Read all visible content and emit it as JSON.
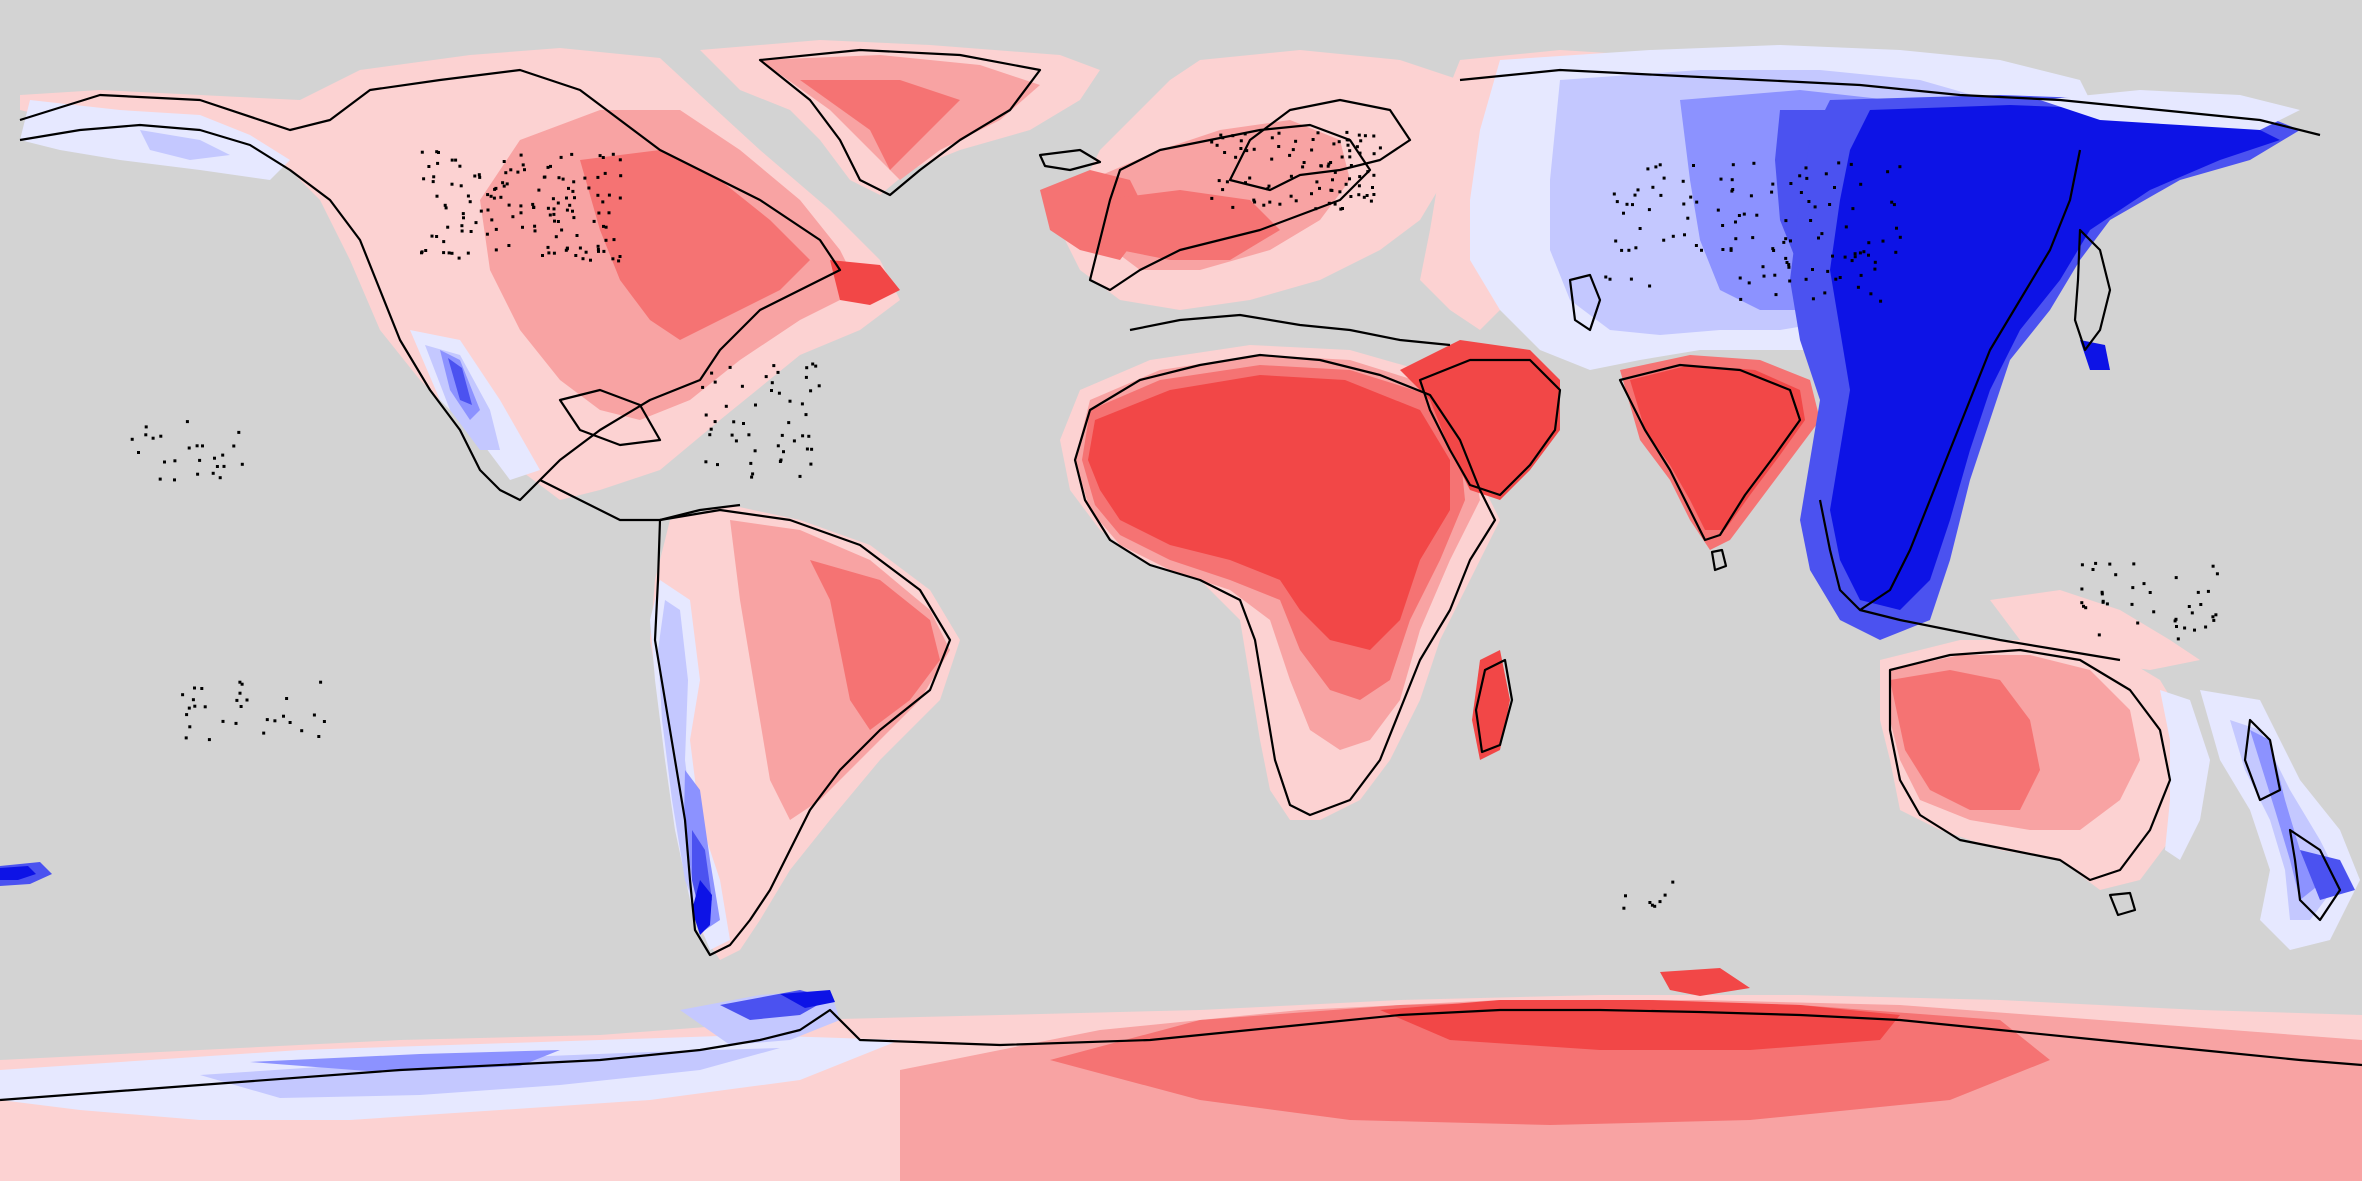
{
  "map": {
    "projection": "equirectangular",
    "ocean_color": "#d3d3d3",
    "coastline_color": "#000000",
    "legend": null,
    "title": "",
    "colors": {
      "red_strong": "#f24747",
      "red_medium": "#f57373",
      "red_light": "#f8a3a3",
      "red_pale": "#fcd2d2",
      "neutral": "#fdf2f2",
      "blue_pale": "#e6e8ff",
      "blue_light": "#c4c8ff",
      "blue_medium": "#8c92ff",
      "blue_deep": "#4b52f0",
      "blue_strong": "#0d13e6"
    },
    "regions": [
      {
        "name": "north-america",
        "anomaly": "warm"
      },
      {
        "name": "western-north-america-mountains",
        "anomaly": "cool"
      },
      {
        "name": "greenland",
        "anomaly": "warm"
      },
      {
        "name": "south-america",
        "anomaly": "warm"
      },
      {
        "name": "andes",
        "anomaly": "cool"
      },
      {
        "name": "europe",
        "anomaly": "warm"
      },
      {
        "name": "africa",
        "anomaly": "warm"
      },
      {
        "name": "arabia",
        "anomaly": "warm"
      },
      {
        "name": "india",
        "anomaly": "warm"
      },
      {
        "name": "siberia-central-asia",
        "anomaly": "cool"
      },
      {
        "name": "east-asia",
        "anomaly": "cool"
      },
      {
        "name": "australia",
        "anomaly": "warm"
      },
      {
        "name": "new-zealand",
        "anomaly": "cool"
      },
      {
        "name": "antarctica",
        "anomaly": "warm"
      },
      {
        "name": "antarctic-peninsula",
        "anomaly": "cool"
      }
    ]
  }
}
